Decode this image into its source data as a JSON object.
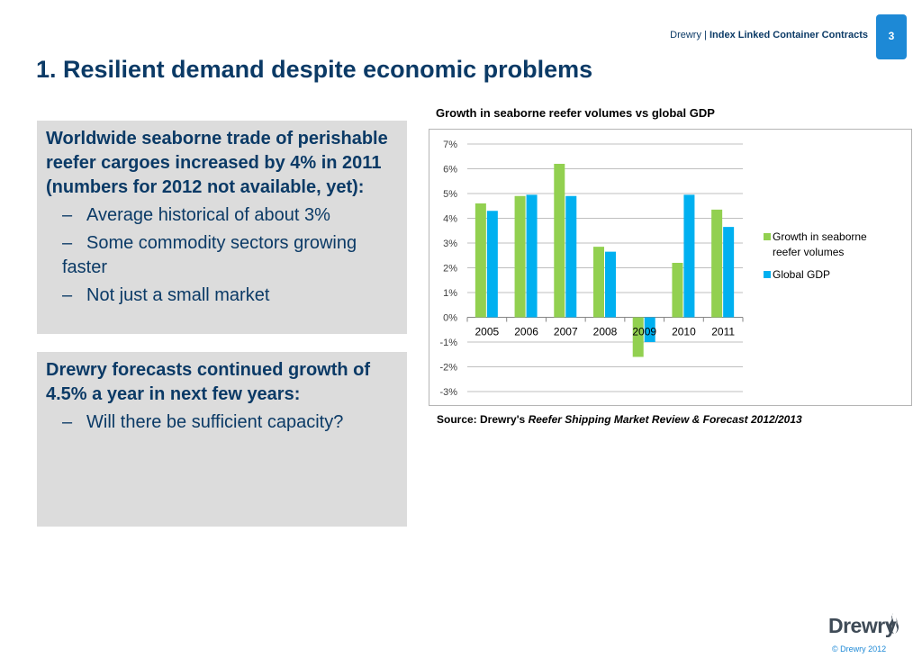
{
  "header": {
    "brand": "Drewry",
    "separator": "|",
    "doc_title": "Index Linked Container Contracts",
    "page_number": "3"
  },
  "title": "1. Resilient demand despite economic problems",
  "box1": {
    "lead": "Worldwide seaborne trade of perishable reefer cargoes increased by 4% in 2011 (numbers for 2012 not available, yet):",
    "bullets": [
      "Average historical of about 3%",
      "Some commodity sectors growing faster",
      "Not just a small market"
    ]
  },
  "box2": {
    "lead": "Drewry forecasts continued growth of 4.5% a year in next few years:",
    "bullets": [
      "Will there be sufficient capacity?"
    ]
  },
  "chart_title": "Growth in seaborne reefer volumes vs global GDP",
  "source": {
    "prefix": "Source: Drewry's ",
    "italic": "Reefer Shipping Market Review & Forecast 2012/2013"
  },
  "footer": {
    "logo_text": "Drewry",
    "copyright": "© Drewry 2012"
  },
  "colors": {
    "navy": "#0b3a66",
    "accent": "#1d89d6",
    "series_green": "#92d050",
    "series_blue": "#00b0f0"
  },
  "chart_data": {
    "type": "bar",
    "title": "Growth in seaborne reefer volumes vs global GDP",
    "categories": [
      "2005",
      "2006",
      "2007",
      "2008",
      "2009",
      "2010",
      "2011"
    ],
    "series": [
      {
        "name": "Growth in seaborne reefer volumes",
        "color": "#92d050",
        "values": [
          4.6,
          4.9,
          6.2,
          2.85,
          -1.6,
          2.2,
          4.35
        ]
      },
      {
        "name": "Global GDP",
        "color": "#00b0f0",
        "values": [
          4.3,
          4.95,
          4.9,
          2.65,
          -1.0,
          4.95,
          3.65
        ]
      }
    ],
    "ylim": [
      -3,
      7
    ],
    "yticks": [
      "7%",
      "6%",
      "5%",
      "4%",
      "3%",
      "2%",
      "1%",
      "0%",
      "-1%",
      "-2%",
      "-3%"
    ],
    "ytick_values": [
      7,
      6,
      5,
      4,
      3,
      2,
      1,
      0,
      -1,
      -2,
      -3
    ],
    "legend_position": "right",
    "grid": true,
    "unit": "%"
  }
}
